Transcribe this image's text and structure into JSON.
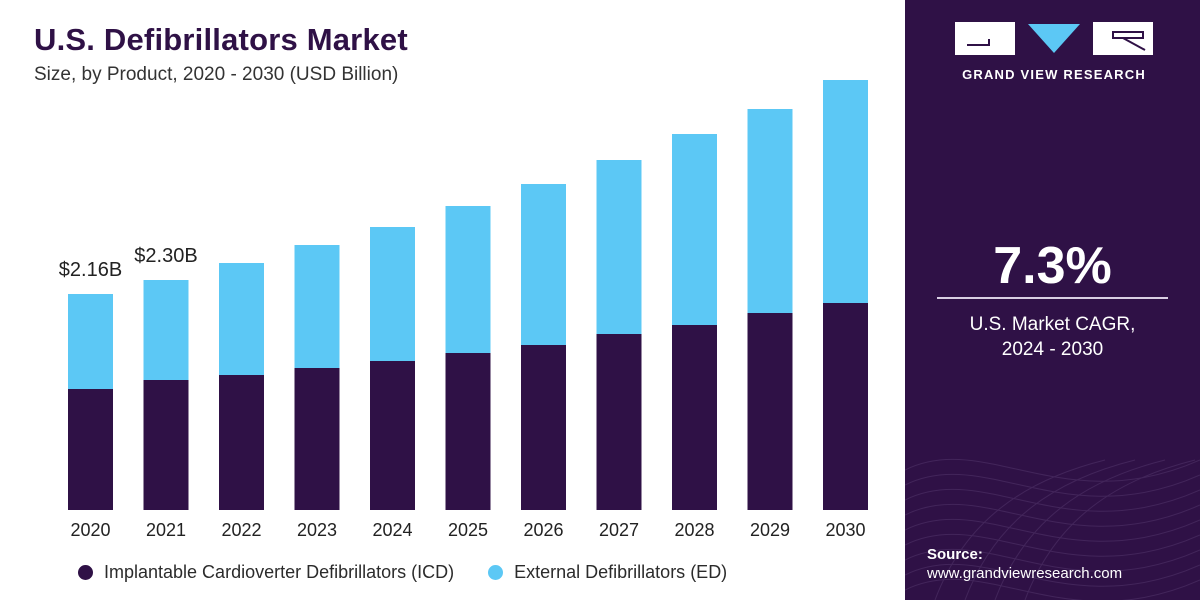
{
  "header": {
    "title": "U.S. Defibrillators Market",
    "subtitle": "Size, by Product, 2020 - 2030 (USD Billion)"
  },
  "colors": {
    "icd": "#2f1146",
    "ed": "#5cc8f5",
    "panel": "#2f1146",
    "title": "#2f1146"
  },
  "chart_data": {
    "type": "bar",
    "stacked": true,
    "categories": [
      "2020",
      "2021",
      "2022",
      "2023",
      "2024",
      "2025",
      "2026",
      "2027",
      "2028",
      "2029",
      "2030"
    ],
    "series": [
      {
        "name": "Implantable Cardioverter Defibrillators (ICD)",
        "values": [
          1.21,
          1.3,
          1.35,
          1.42,
          1.49,
          1.57,
          1.65,
          1.76,
          1.85,
          1.97,
          2.07
        ]
      },
      {
        "name": "External Defibrillators (ED)",
        "values": [
          0.95,
          1.0,
          1.12,
          1.23,
          1.34,
          1.47,
          1.61,
          1.74,
          1.91,
          2.04,
          2.23
        ]
      }
    ],
    "data_labels": [
      {
        "category": "2020",
        "text": "$2.16B"
      },
      {
        "category": "2021",
        "text": "$2.30B"
      }
    ],
    "ylim": [
      0,
      4.5
    ],
    "grid": false,
    "legend_position": "bottom",
    "xlabel": "",
    "ylabel": ""
  },
  "legend": [
    {
      "label": "Implantable Cardioverter Defibrillators (ICD)",
      "color": "#2f1146"
    },
    {
      "label": "External Defibrillators (ED)",
      "color": "#5cc8f5"
    }
  ],
  "panel": {
    "brand": "GRAND VIEW RESEARCH",
    "logo_icon": "gvr-logo-icon",
    "cagr_value": "7.3%",
    "cagr_label_line1": "U.S. Market CAGR,",
    "cagr_label_line2": "2024 - 2030",
    "source_title": "Source:",
    "source_url": "www.grandviewresearch.com"
  }
}
